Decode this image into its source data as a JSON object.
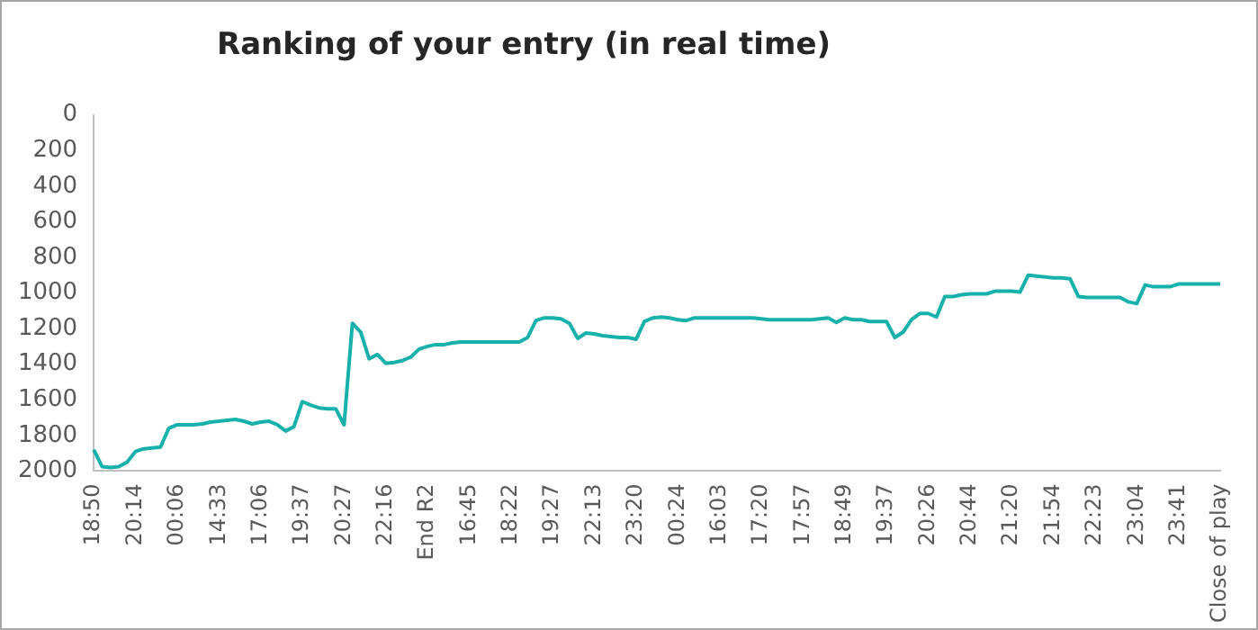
{
  "chart_data": {
    "type": "line",
    "title": "Ranking of your entry (in real time)",
    "categories": [
      "18:50",
      null,
      null,
      null,
      null,
      "20:14",
      null,
      null,
      null,
      null,
      "00:06",
      null,
      null,
      null,
      null,
      "14:33",
      null,
      null,
      null,
      null,
      "17:06",
      null,
      null,
      null,
      null,
      "19:37",
      null,
      null,
      null,
      null,
      "20:27",
      null,
      null,
      null,
      null,
      "22:16",
      null,
      null,
      null,
      null,
      "End R2",
      null,
      null,
      null,
      null,
      "16:45",
      null,
      null,
      null,
      null,
      "18:22",
      null,
      null,
      null,
      null,
      "19:27",
      null,
      null,
      null,
      null,
      "22:13",
      null,
      null,
      null,
      null,
      "23:20",
      null,
      null,
      null,
      null,
      "00:24",
      null,
      null,
      null,
      null,
      "16:03",
      null,
      null,
      null,
      null,
      "17:20",
      null,
      null,
      null,
      null,
      "17:57",
      null,
      null,
      null,
      null,
      "18:49",
      null,
      null,
      null,
      null,
      "19:37",
      null,
      null,
      null,
      null,
      "20:26",
      null,
      null,
      null,
      null,
      "20:44",
      null,
      null,
      null,
      null,
      "21:20",
      null,
      null,
      null,
      null,
      "21:54",
      null,
      null,
      null,
      null,
      "22:23",
      null,
      null,
      null,
      null,
      "23:04",
      null,
      null,
      null,
      null,
      "23:41",
      null,
      null,
      null,
      null,
      "Close of play"
    ],
    "values": [
      1880,
      1975,
      1980,
      1975,
      1950,
      1890,
      1875,
      1870,
      1865,
      1760,
      1740,
      1740,
      1740,
      1735,
      1725,
      1720,
      1715,
      1710,
      1720,
      1735,
      1725,
      1720,
      1740,
      1775,
      1750,
      1610,
      1630,
      1645,
      1650,
      1650,
      1740,
      1170,
      1220,
      1370,
      1345,
      1395,
      1390,
      1380,
      1360,
      1315,
      1300,
      1290,
      1290,
      1280,
      1275,
      1275,
      1275,
      1275,
      1275,
      1275,
      1275,
      1275,
      1250,
      1155,
      1140,
      1140,
      1145,
      1170,
      1255,
      1225,
      1230,
      1240,
      1245,
      1250,
      1250,
      1260,
      1160,
      1140,
      1135,
      1140,
      1150,
      1155,
      1140,
      1140,
      1140,
      1140,
      1140,
      1140,
      1140,
      1140,
      1145,
      1150,
      1150,
      1150,
      1150,
      1150,
      1150,
      1145,
      1140,
      1165,
      1140,
      1150,
      1150,
      1160,
      1160,
      1160,
      1250,
      1220,
      1150,
      1115,
      1115,
      1135,
      1020,
      1020,
      1010,
      1005,
      1005,
      1005,
      990,
      990,
      990,
      995,
      900,
      905,
      910,
      915,
      915,
      920,
      1020,
      1025,
      1025,
      1025,
      1025,
      1025,
      1050,
      1060,
      955,
      965,
      965,
      965,
      950,
      950,
      950,
      950,
      950,
      950
    ],
    "color": "#17b1ab",
    "ylim": [
      2000,
      0
    ],
    "yticks": [
      0,
      200,
      400,
      600,
      800,
      1000,
      1200,
      1400,
      1600,
      1800,
      2000
    ],
    "marker": "none",
    "legend": false
  }
}
